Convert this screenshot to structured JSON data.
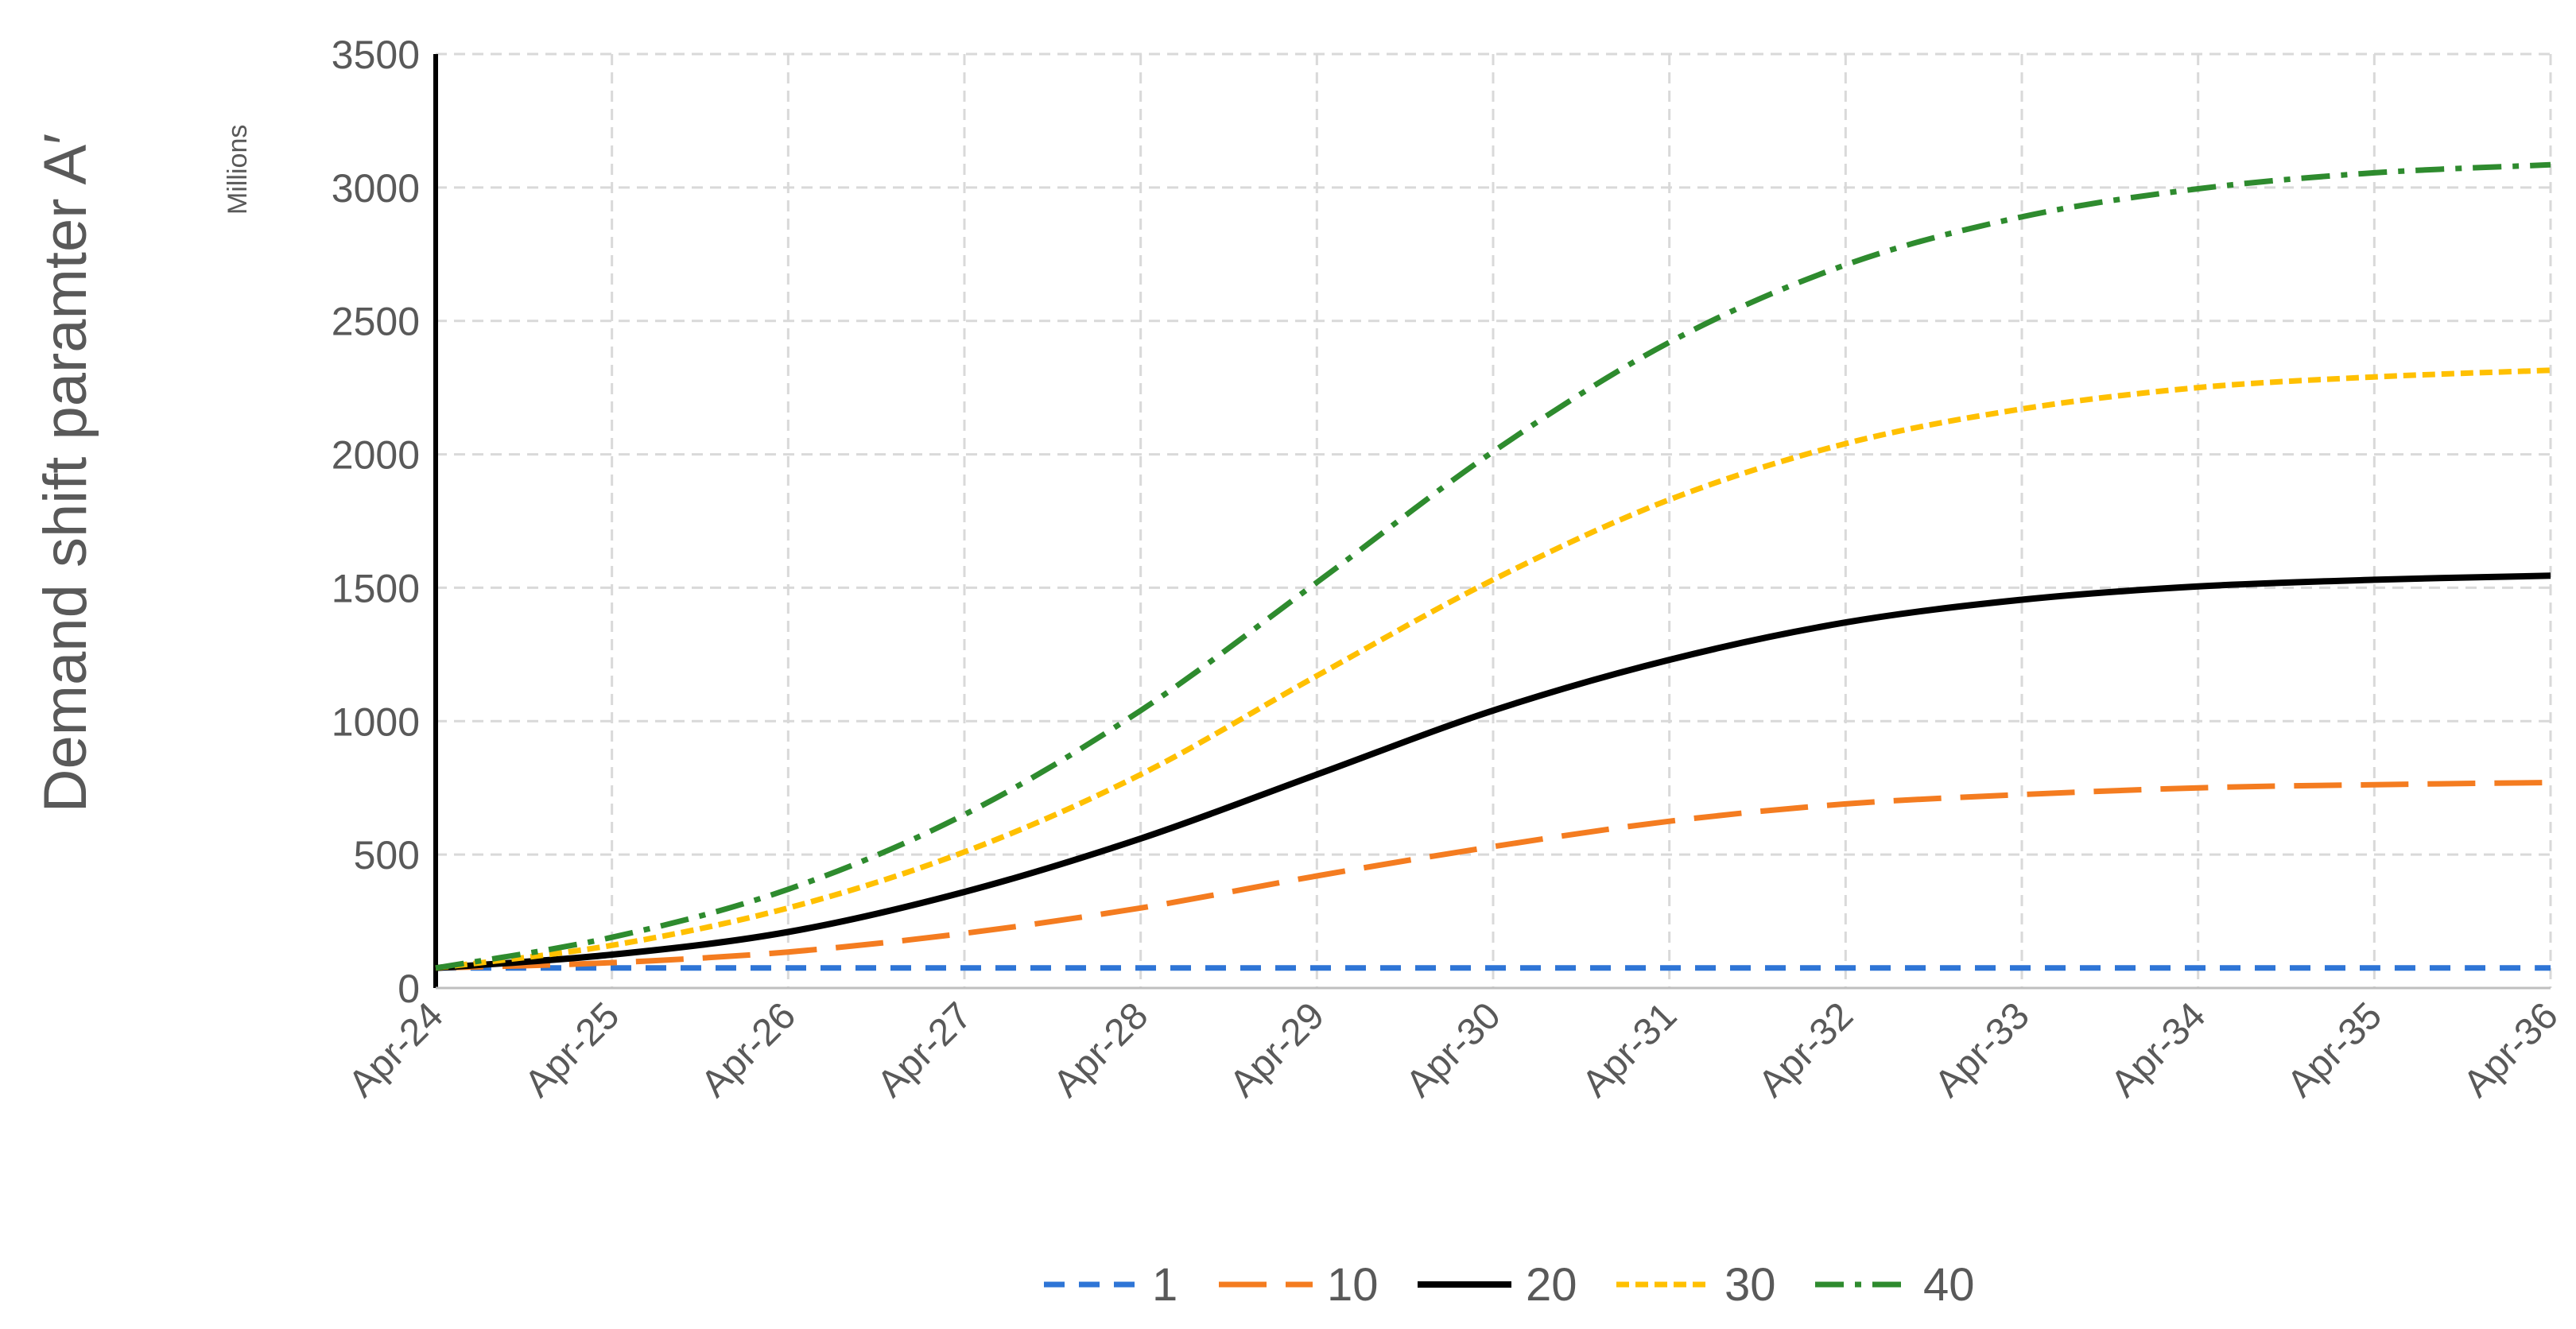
{
  "chart_data": {
    "type": "line",
    "title": "",
    "xlabel": "",
    "ylabel": "Demand shift paramter A′",
    "yunit": "Millions",
    "ylim": [
      0,
      3500
    ],
    "yticks": [
      "0",
      "500",
      "1000",
      "1500",
      "2000",
      "2500",
      "3000",
      "3500"
    ],
    "x": [
      "Apr-24",
      "Apr-25",
      "Apr-26",
      "Apr-27",
      "Apr-28",
      "Apr-29",
      "Apr-30",
      "Apr-31",
      "Apr-32",
      "Apr-33",
      "Apr-34",
      "Apr-35",
      "Apr-36"
    ],
    "grid": true,
    "legend_position": "bottom",
    "series": [
      {
        "name": "1",
        "color": "#2E75D6",
        "style": "dash",
        "values": [
          75,
          75,
          75,
          75,
          75,
          75,
          75,
          75,
          75,
          75,
          75,
          75,
          75
        ]
      },
      {
        "name": "10",
        "color": "#F47C20",
        "style": "longdash",
        "values": [
          75,
          95,
          135,
          205,
          300,
          420,
          530,
          625,
          690,
          725,
          750,
          762,
          770
        ]
      },
      {
        "name": "20",
        "color": "#000000",
        "style": "solid",
        "values": [
          75,
          125,
          210,
          360,
          560,
          800,
          1040,
          1230,
          1370,
          1455,
          1505,
          1530,
          1545
        ]
      },
      {
        "name": "30",
        "color": "#FFC000",
        "style": "shortdash",
        "values": [
          75,
          160,
          300,
          510,
          800,
          1170,
          1530,
          1830,
          2040,
          2170,
          2250,
          2290,
          2315
        ]
      },
      {
        "name": "40",
        "color": "#2E8B2E",
        "style": "dashdot",
        "values": [
          75,
          190,
          370,
          650,
          1040,
          1520,
          2010,
          2420,
          2710,
          2890,
          2995,
          3055,
          3085
        ]
      }
    ]
  }
}
